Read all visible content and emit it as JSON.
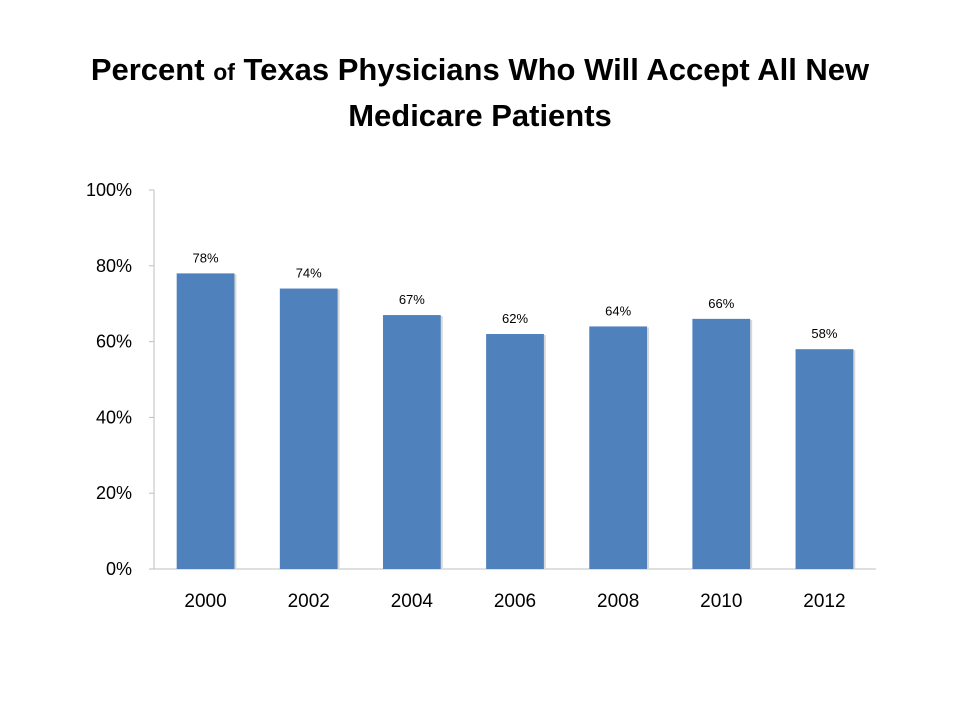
{
  "title": {
    "part1": "Percent",
    "part2": "of",
    "part3": "Texas Physicians Who Will Accept All New",
    "line2": "Medicare Patients"
  },
  "chart_data": {
    "type": "bar",
    "title": "Percent of Texas Physicians Who Will Accept All New Medicare Patients",
    "categories": [
      "2000",
      "2002",
      "2004",
      "2006",
      "2008",
      "2010",
      "2012"
    ],
    "values": [
      78,
      74,
      67,
      62,
      64,
      66,
      58
    ],
    "data_labels": [
      "78%",
      "74%",
      "67%",
      "62%",
      "64%",
      "66%",
      "58%"
    ],
    "ylim": [
      0,
      100
    ],
    "yticks": [
      "0%",
      "20%",
      "40%",
      "60%",
      "80%",
      "100%"
    ],
    "xlabel": "",
    "ylabel": "",
    "grid": false,
    "legend": "none",
    "bar_color": "#4F81BD"
  }
}
